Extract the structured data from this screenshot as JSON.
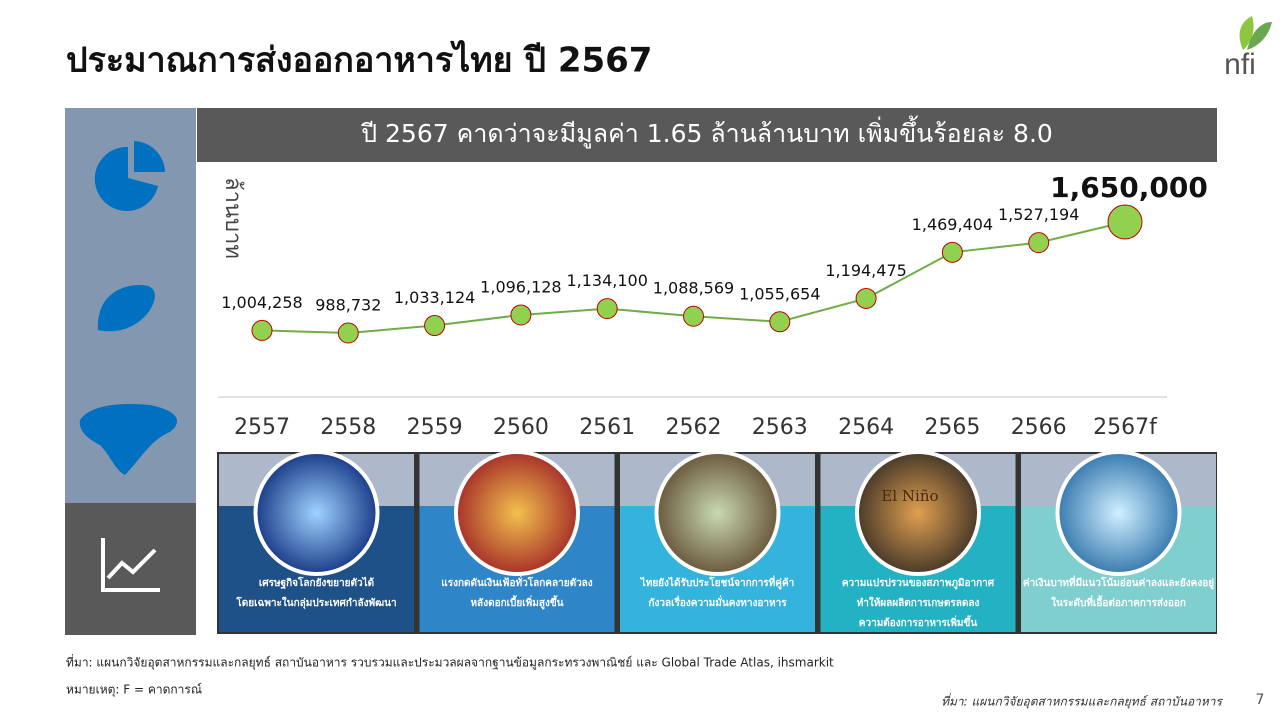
{
  "title": "ประมาณการส่งออกอาหารไทย ปี 2567",
  "logo": "nfi",
  "chart_data": {
    "type": "line",
    "title": "ปี 2567 คาดว่าจะมีมูลค่า 1.65 ล้านล้านบาท เพิ่มขึ้นร้อยละ 8.0",
    "ylabel": "ล้านบาท",
    "categories": [
      "2557",
      "2558",
      "2559",
      "2560",
      "2561",
      "2562",
      "2563",
      "2564",
      "2565",
      "2566",
      "2567f"
    ],
    "values": [
      1004258,
      988732,
      1033124,
      1096128,
      1134100,
      1088569,
      1055654,
      1194475,
      1469404,
      1527194,
      1650000
    ],
    "value_labels": [
      "1,004,258",
      "988,732",
      "1,033,124",
      "1,096,128",
      "1,134,100",
      "1,088,569",
      "1,055,654",
      "1,194,475",
      "1,469,404",
      "1,527,194",
      "1,650,000"
    ],
    "color": "#70ad47",
    "marker_color": "#92d050",
    "marker_edge": "#c00000"
  },
  "cards": [
    {
      "lines": [
        "เศรษฐกิจโลกยังขยายตัวได้",
        "โดยเฉพาะในกลุ่มประเทศกำลังพัฒนา"
      ],
      "color": "#1f5189"
    },
    {
      "lines": [
        "แรงกดดันเงินเฟ้อทั่วโลกคลายตัวลง",
        "หลังดอกเบี้ยเพิ่มสูงขึ้น"
      ],
      "color": "#2e86c9"
    },
    {
      "lines": [
        "ไทยยังได้รับประโยชน์จากการที่คู่ค้า",
        "กังวลเรื่องความมั่นคงทางอาหาร"
      ],
      "color": "#34b3dc"
    },
    {
      "lines": [
        "ความแปรปรวนของสภาพภูมิอากาศ",
        "ทำให้ผลผลิตการเกษตรลดลง",
        "ความต้องการอาหารเพิ่มขึ้น"
      ],
      "color": "#23b2c4",
      "image_text": "El Niño"
    },
    {
      "lines": [
        "ค่าเงินบาทที่มีแนวโน้มอ่อนค่าลงและยังคงอยู่",
        "ในระดับที่เอื้อต่อภาคการส่งออก"
      ],
      "color": "#7ecfcd"
    }
  ],
  "footer": {
    "source": "ที่มา: แผนกวิจัยอุตสาหกรรมและกลยุทธ์   สถาบันอาหาร รวบรวมและประมวลผลจากฐานข้อมูลกระทรวงพาณิชย์  และ Global Trade Atlas, ihsmarkit",
    "note": "หมายเหตุ: F = คาดการณ์",
    "credit": "ที่มา: แผนกวิจัยอุตสาหกรรมและกลยุทธ์ สถาบันอาหาร",
    "page": "7"
  }
}
